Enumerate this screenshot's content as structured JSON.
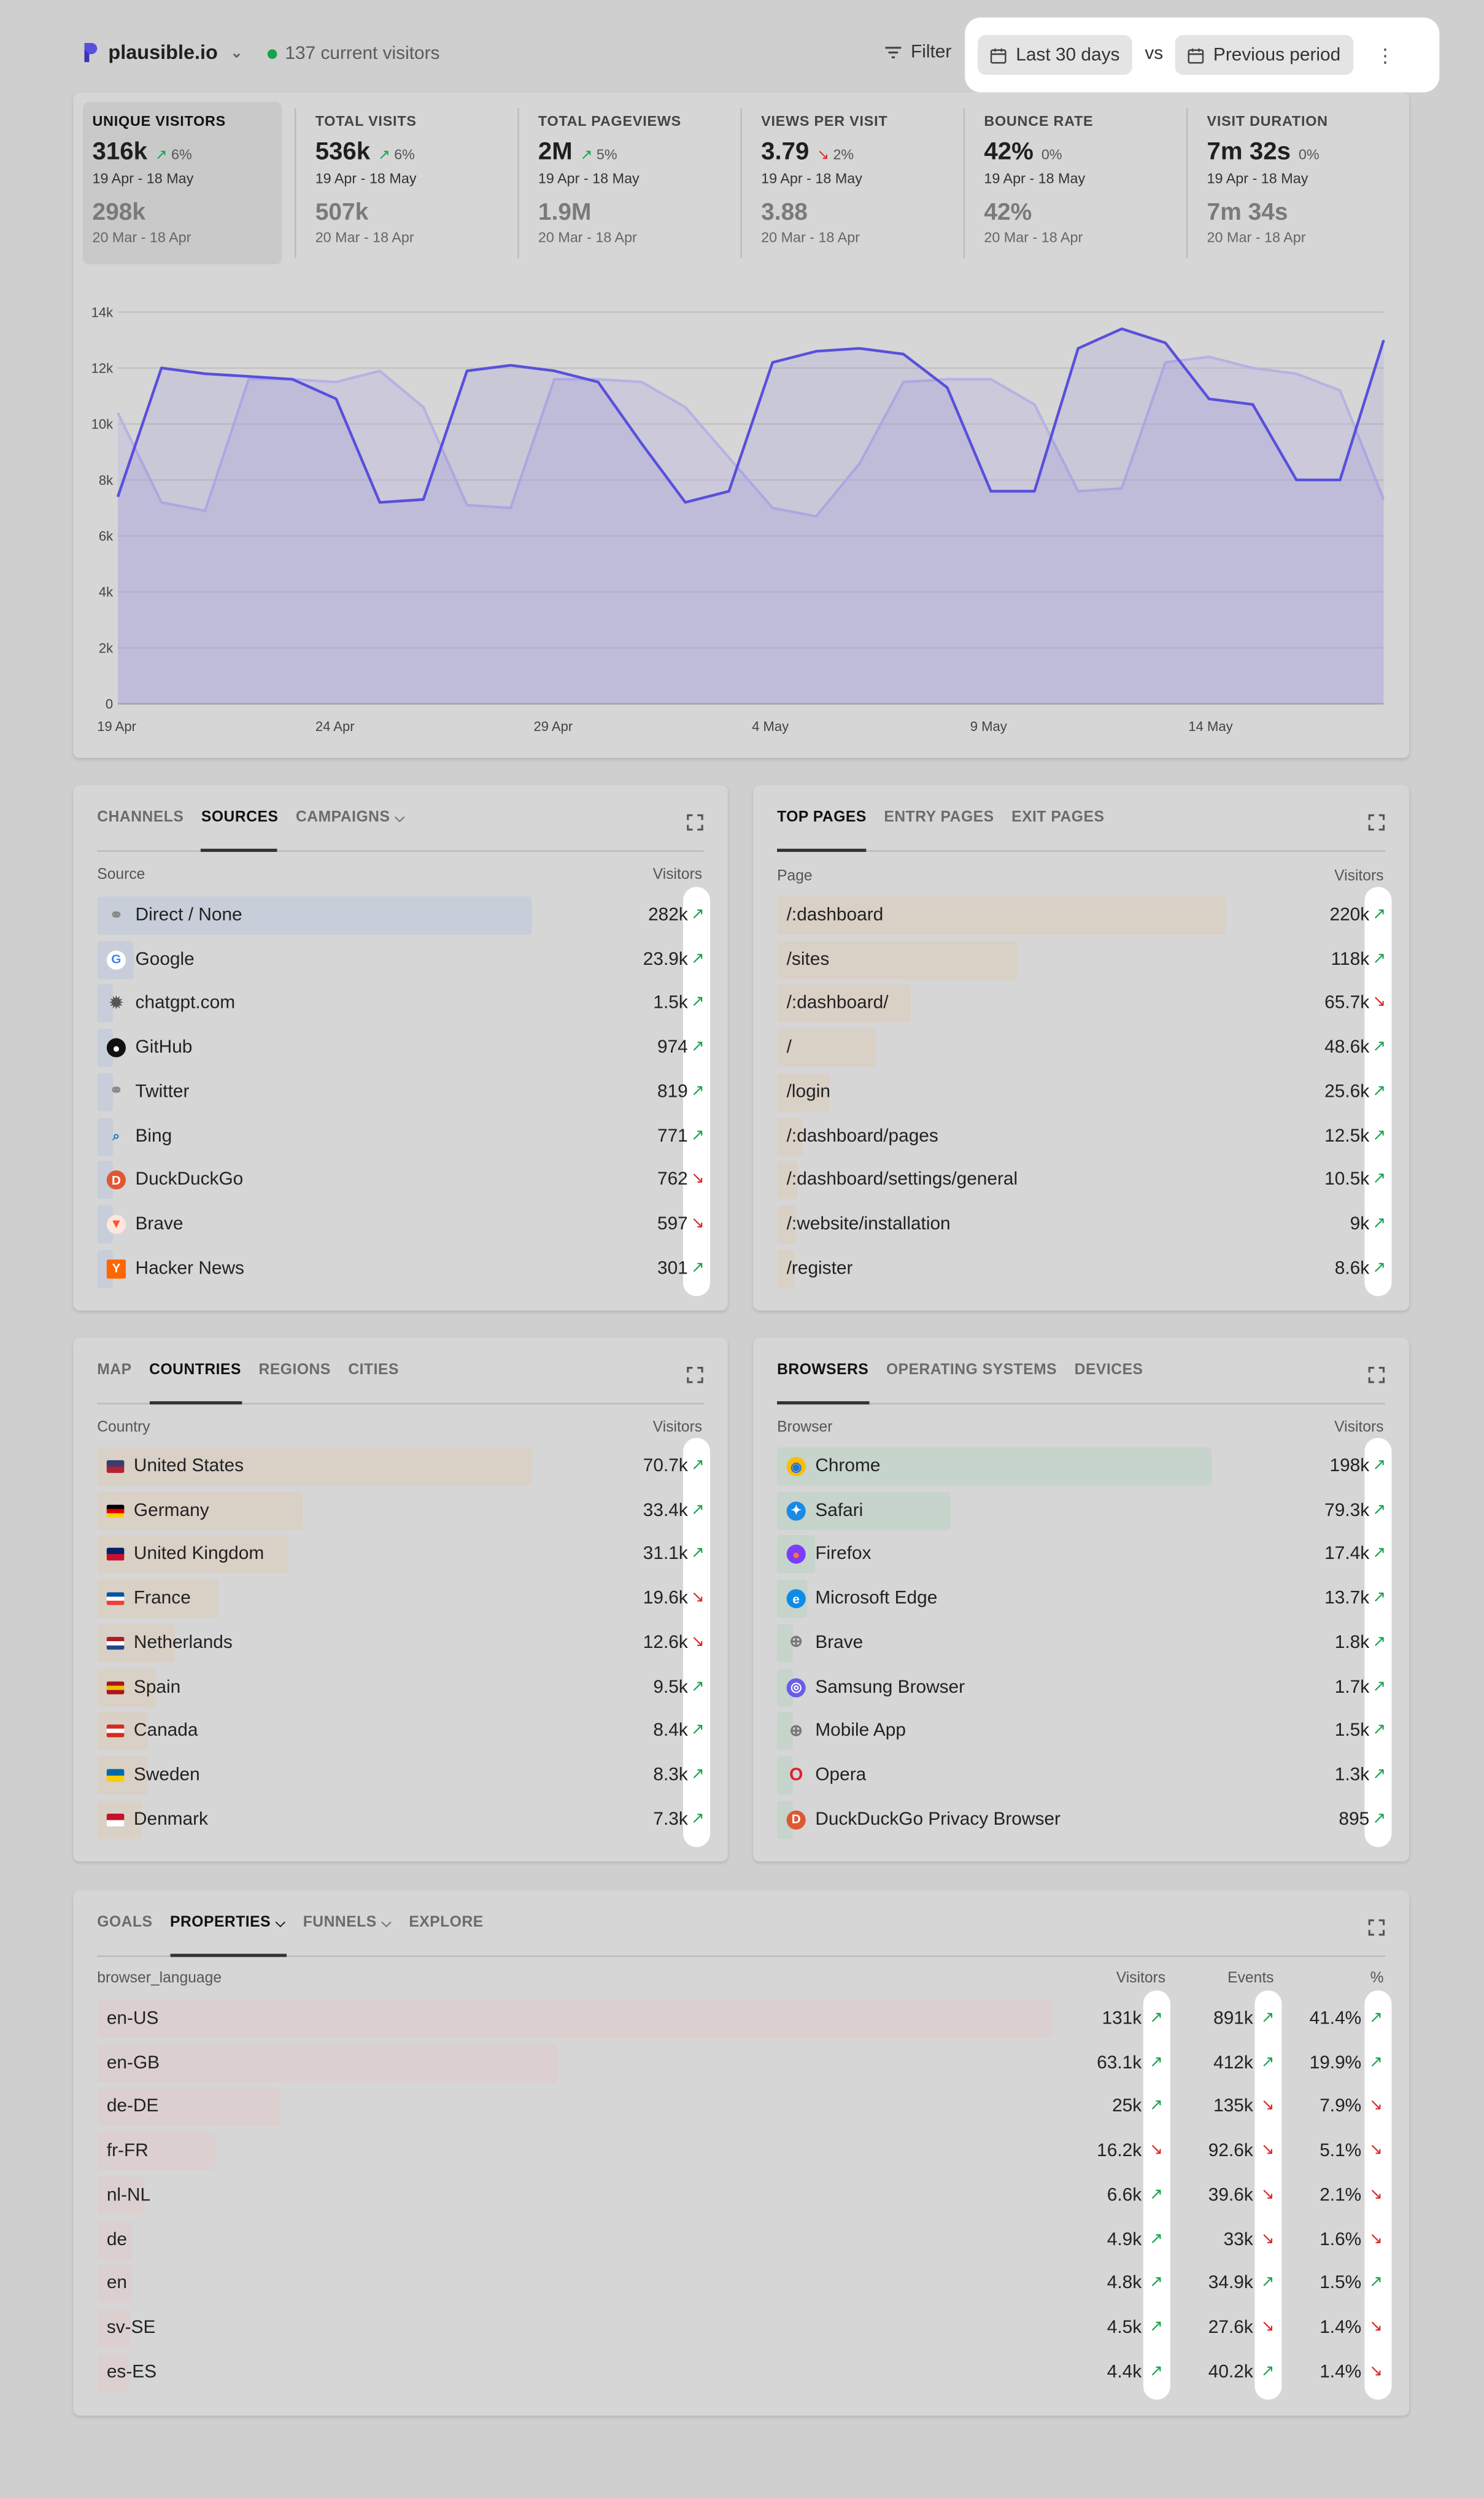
{
  "header": {
    "site": "plausible.io",
    "current_visitors": "137 current visitors",
    "filter_label": "Filter",
    "period_label": "Last 30 days",
    "vs_label": "vs",
    "compare_label": "Previous period"
  },
  "stats": [
    {
      "label": "UNIQUE VISITORS",
      "value": "316k",
      "change": "6%",
      "dir": "up",
      "range": "19 Apr - 18 May",
      "prev_value": "298k",
      "prev_range": "20 Mar - 18 Apr"
    },
    {
      "label": "TOTAL VISITS",
      "value": "536k",
      "change": "6%",
      "dir": "up",
      "range": "19 Apr - 18 May",
      "prev_value": "507k",
      "prev_range": "20 Mar - 18 Apr"
    },
    {
      "label": "TOTAL PAGEVIEWS",
      "value": "2M",
      "change": "5%",
      "dir": "up",
      "range": "19 Apr - 18 May",
      "prev_value": "1.9M",
      "prev_range": "20 Mar - 18 Apr"
    },
    {
      "label": "VIEWS PER VISIT",
      "value": "3.79",
      "change": "2%",
      "dir": "down",
      "range": "19 Apr - 18 May",
      "prev_value": "3.88",
      "prev_range": "20 Mar - 18 Apr"
    },
    {
      "label": "BOUNCE RATE",
      "value": "42%",
      "change": "0%",
      "dir": "none",
      "range": "19 Apr - 18 May",
      "prev_value": "42%",
      "prev_range": "20 Mar - 18 Apr"
    },
    {
      "label": "VISIT DURATION",
      "value": "7m 32s",
      "change": "0%",
      "dir": "none",
      "range": "19 Apr - 18 May",
      "prev_value": "7m 34s",
      "prev_range": "20 Mar - 18 Apr"
    }
  ],
  "chart_data": {
    "type": "line",
    "ylim": [
      0,
      14000
    ],
    "yticks": [
      "0",
      "2k",
      "4k",
      "6k",
      "8k",
      "10k",
      "12k",
      "14k"
    ],
    "xtick_labels": [
      "19 Apr",
      "24 Apr",
      "29 Apr",
      "4 May",
      "9 May",
      "14 May"
    ],
    "xtick_index": [
      0,
      5,
      10,
      15,
      20,
      25
    ],
    "grid": true,
    "series": [
      {
        "values": [
          7400,
          12000,
          11800,
          11700,
          11600,
          10900,
          7200,
          7300,
          11900,
          12100,
          11900,
          11500,
          9300,
          7200,
          7600,
          12200,
          12600,
          12700,
          12500,
          11300,
          7600,
          7600,
          12700,
          13400,
          12900,
          10900,
          10700,
          8000,
          8000,
          13000
        ]
      },
      {
        "values": [
          10400,
          7200,
          6900,
          11600,
          11600,
          11500,
          11900,
          10600,
          7100,
          7000,
          11600,
          11600,
          11500,
          10600,
          8800,
          7000,
          6700,
          8600,
          11500,
          11600,
          11600,
          10700,
          7600,
          7700,
          12200,
          12400,
          12000,
          11800,
          11200,
          7300
        ]
      }
    ],
    "colors": {
      "current": "#5850dc",
      "previous": "#b6b2e2"
    }
  },
  "sources": {
    "tabs": [
      "CHANNELS",
      "SOURCES",
      "CAMPAIGNS"
    ],
    "active": 1,
    "col_label": "Source",
    "col_value": "Visitors",
    "max": 282000,
    "rows": [
      {
        "name": "Direct / None",
        "value": "282k",
        "v": 282000,
        "dir": "up",
        "icon": "link-icon"
      },
      {
        "name": "Google",
        "value": "23.9k",
        "v": 23900,
        "dir": "up",
        "icon": "google-icon"
      },
      {
        "name": "chatgpt.com",
        "value": "1.5k",
        "v": 1500,
        "dir": "up",
        "icon": "chatgpt-icon"
      },
      {
        "name": "GitHub",
        "value": "974",
        "v": 974,
        "dir": "up",
        "icon": "github-icon"
      },
      {
        "name": "Twitter",
        "value": "819",
        "v": 819,
        "dir": "up",
        "icon": "link-icon"
      },
      {
        "name": "Bing",
        "value": "771",
        "v": 771,
        "dir": "up",
        "icon": "bing-icon"
      },
      {
        "name": "DuckDuckGo",
        "value": "762",
        "v": 762,
        "dir": "down",
        "icon": "duckduckgo-icon"
      },
      {
        "name": "Brave",
        "value": "597",
        "v": 597,
        "dir": "down",
        "icon": "brave-icon"
      },
      {
        "name": "Hacker News",
        "value": "301",
        "v": 301,
        "dir": "up",
        "icon": "hackernews-icon"
      }
    ]
  },
  "pages": {
    "tabs": [
      "TOP PAGES",
      "ENTRY PAGES",
      "EXIT PAGES"
    ],
    "active": 0,
    "col_label": "Page",
    "col_value": "Visitors",
    "max": 220000,
    "rows": [
      {
        "name": "/:dashboard",
        "value": "220k",
        "v": 220000,
        "dir": "up"
      },
      {
        "name": "/sites",
        "value": "118k",
        "v": 118000,
        "dir": "up"
      },
      {
        "name": "/:dashboard/",
        "value": "65.7k",
        "v": 65700,
        "dir": "down"
      },
      {
        "name": "/",
        "value": "48.6k",
        "v": 48600,
        "dir": "up"
      },
      {
        "name": "/login",
        "value": "25.6k",
        "v": 25600,
        "dir": "up"
      },
      {
        "name": "/:dashboard/pages",
        "value": "12.5k",
        "v": 12500,
        "dir": "up"
      },
      {
        "name": "/:dashboard/settings/general",
        "value": "10.5k",
        "v": 10500,
        "dir": "up"
      },
      {
        "name": "/:website/installation",
        "value": "9k",
        "v": 9000,
        "dir": "up"
      },
      {
        "name": "/register",
        "value": "8.6k",
        "v": 8600,
        "dir": "up"
      }
    ]
  },
  "countries": {
    "tabs": [
      "MAP",
      "COUNTRIES",
      "REGIONS",
      "CITIES"
    ],
    "active": 1,
    "col_label": "Country",
    "col_value": "Visitors",
    "max": 70700,
    "rows": [
      {
        "name": "United States",
        "value": "70.7k",
        "v": 70700,
        "dir": "up",
        "flag": "us-flag-icon",
        "colors": [
          "#3c3b6e",
          "#b22234"
        ]
      },
      {
        "name": "Germany",
        "value": "33.4k",
        "v": 33400,
        "dir": "up",
        "flag": "germany-flag-icon",
        "colors": [
          "#000000",
          "#dd0000",
          "#ffce00"
        ]
      },
      {
        "name": "United Kingdom",
        "value": "31.1k",
        "v": 31100,
        "dir": "up",
        "flag": "uk-flag-icon",
        "colors": [
          "#012169",
          "#c8102e"
        ]
      },
      {
        "name": "France",
        "value": "19.6k",
        "v": 19600,
        "dir": "down",
        "flag": "france-flag-icon",
        "colors": [
          "#0055a4",
          "#ffffff",
          "#ef4135"
        ]
      },
      {
        "name": "Netherlands",
        "value": "12.6k",
        "v": 12600,
        "dir": "down",
        "flag": "netherlands-flag-icon",
        "colors": [
          "#ae1c28",
          "#ffffff",
          "#21468b"
        ]
      },
      {
        "name": "Spain",
        "value": "9.5k",
        "v": 9500,
        "dir": "up",
        "flag": "spain-flag-icon",
        "colors": [
          "#aa151b",
          "#f1bf00",
          "#aa151b"
        ]
      },
      {
        "name": "Canada",
        "value": "8.4k",
        "v": 8400,
        "dir": "up",
        "flag": "canada-flag-icon",
        "colors": [
          "#d52b1e",
          "#ffffff",
          "#d52b1e"
        ]
      },
      {
        "name": "Sweden",
        "value": "8.3k",
        "v": 8300,
        "dir": "up",
        "flag": "sweden-flag-icon",
        "colors": [
          "#006aa7",
          "#fecc00"
        ]
      },
      {
        "name": "Denmark",
        "value": "7.3k",
        "v": 7300,
        "dir": "up",
        "flag": "denmark-flag-icon",
        "colors": [
          "#c8102e",
          "#ffffff"
        ]
      }
    ]
  },
  "browsers": {
    "tabs": [
      "BROWSERS",
      "OPERATING SYSTEMS",
      "DEVICES"
    ],
    "active": 0,
    "col_label": "Browser",
    "col_value": "Visitors",
    "max": 198000,
    "rows": [
      {
        "name": "Chrome",
        "value": "198k",
        "v": 198000,
        "dir": "up",
        "icon": "chrome-icon"
      },
      {
        "name": "Safari",
        "value": "79.3k",
        "v": 79300,
        "dir": "up",
        "icon": "safari-icon"
      },
      {
        "name": "Firefox",
        "value": "17.4k",
        "v": 17400,
        "dir": "up",
        "icon": "firefox-icon"
      },
      {
        "name": "Microsoft Edge",
        "value": "13.7k",
        "v": 13700,
        "dir": "up",
        "icon": "edge-icon"
      },
      {
        "name": "Brave",
        "value": "1.8k",
        "v": 1800,
        "dir": "up",
        "icon": "globe-icon"
      },
      {
        "name": "Samsung Browser",
        "value": "1.7k",
        "v": 1700,
        "dir": "up",
        "icon": "samsung-browser-icon"
      },
      {
        "name": "Mobile App",
        "value": "1.5k",
        "v": 1500,
        "dir": "up",
        "icon": "globe-icon"
      },
      {
        "name": "Opera",
        "value": "1.3k",
        "v": 1300,
        "dir": "up",
        "icon": "opera-icon"
      },
      {
        "name": "DuckDuckGo Privacy Browser",
        "value": "895",
        "v": 895,
        "dir": "up",
        "icon": "duckduckgo-icon"
      }
    ]
  },
  "properties": {
    "tabs": [
      "GOALS",
      "PROPERTIES",
      "FUNNELS",
      "EXPLORE"
    ],
    "active": 1,
    "col_label": "browser_language",
    "col_visitors": "Visitors",
    "col_events": "Events",
    "col_pct": "%",
    "max": 131000,
    "rows": [
      {
        "name": "en-US",
        "visitors": "131k",
        "v": 131000,
        "vdir": "up",
        "events": "891k",
        "edir": "up",
        "pct": "41.4%",
        "pdir": "up"
      },
      {
        "name": "en-GB",
        "visitors": "63.1k",
        "v": 63100,
        "vdir": "up",
        "events": "412k",
        "edir": "up",
        "pct": "19.9%",
        "pdir": "up"
      },
      {
        "name": "de-DE",
        "visitors": "25k",
        "v": 25000,
        "vdir": "up",
        "events": "135k",
        "edir": "down",
        "pct": "7.9%",
        "pdir": "down"
      },
      {
        "name": "fr-FR",
        "visitors": "16.2k",
        "v": 16200,
        "vdir": "down",
        "events": "92.6k",
        "edir": "down",
        "pct": "5.1%",
        "pdir": "down"
      },
      {
        "name": "nl-NL",
        "visitors": "6.6k",
        "v": 6600,
        "vdir": "up",
        "events": "39.6k",
        "edir": "down",
        "pct": "2.1%",
        "pdir": "down"
      },
      {
        "name": "de",
        "visitors": "4.9k",
        "v": 4900,
        "vdir": "up",
        "events": "33k",
        "edir": "down",
        "pct": "1.6%",
        "pdir": "down"
      },
      {
        "name": "en",
        "visitors": "4.8k",
        "v": 4800,
        "vdir": "up",
        "events": "34.9k",
        "edir": "up",
        "pct": "1.5%",
        "pdir": "up"
      },
      {
        "name": "sv-SE",
        "visitors": "4.5k",
        "v": 4500,
        "vdir": "up",
        "events": "27.6k",
        "edir": "down",
        "pct": "1.4%",
        "pdir": "down"
      },
      {
        "name": "es-ES",
        "visitors": "4.4k",
        "v": 4400,
        "vdir": "up",
        "events": "40.2k",
        "edir": "up",
        "pct": "1.4%",
        "pdir": "down"
      }
    ]
  }
}
